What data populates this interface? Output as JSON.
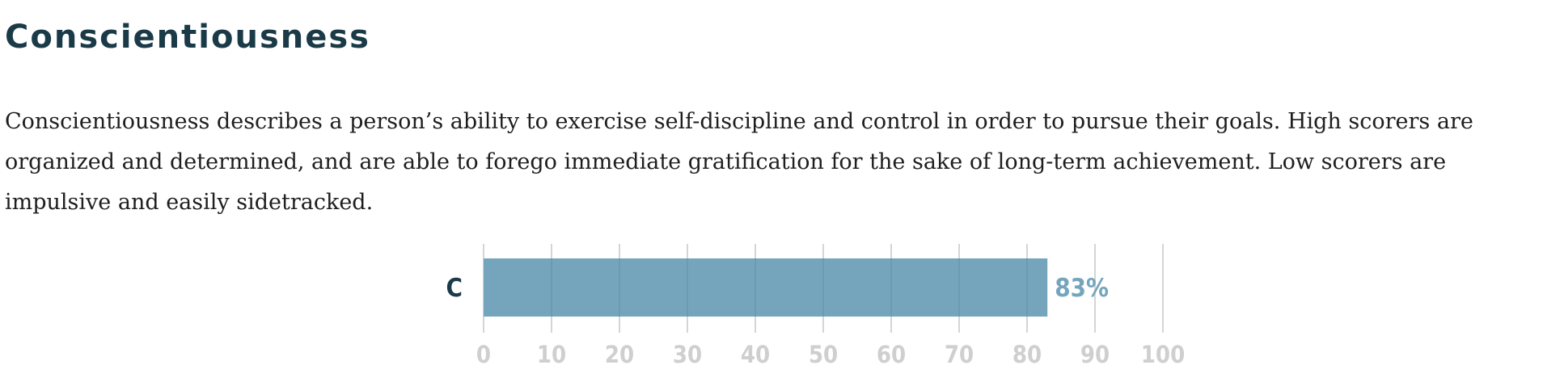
{
  "section": {
    "title": "Conscientiousness",
    "description": "Conscientiousness describes a person’s ability to exercise self-discipline and control in order to pursue their goals. High scorers are organized and determined, and are able to forego immediate gratification for the sake of long-term achievement. Low scorers are impulsive and easily sidetracked."
  },
  "colors": {
    "bar": "#74a5bd",
    "value_label": "#74a5bd",
    "grid": "#d5d5d5",
    "grid_over_bar": "#5f8ea5"
  },
  "chart_data": {
    "type": "bar",
    "orientation": "horizontal",
    "categories": [
      "C"
    ],
    "values": [
      83
    ],
    "value_labels": [
      "83%"
    ],
    "xlim": [
      0,
      100
    ],
    "xticks": [
      0,
      10,
      20,
      30,
      40,
      50,
      60,
      70,
      80,
      90,
      100
    ],
    "tick_labels": [
      "0",
      "10",
      "20",
      "30",
      "40",
      "50",
      "60",
      "70",
      "80",
      "90",
      "100"
    ],
    "grid": true
  }
}
